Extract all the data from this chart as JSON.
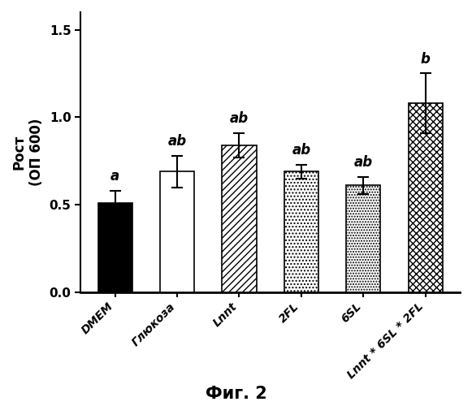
{
  "categories": [
    "DMEM",
    "Глюкоза",
    "Lnnt",
    "2FL",
    "6SL",
    "Lnnt * 6SL * 2FL"
  ],
  "values": [
    0.51,
    0.69,
    0.84,
    0.69,
    0.61,
    1.08
  ],
  "errors": [
    0.07,
    0.09,
    0.07,
    0.04,
    0.05,
    0.17
  ],
  "sig_labels": [
    "a",
    "ab",
    "ab",
    "ab",
    "ab",
    "b"
  ],
  "facecolors": [
    "black",
    "white",
    "white",
    "white",
    "white",
    "white"
  ],
  "hatch_patterns": [
    "",
    "",
    "////",
    "....",
    ".....",
    "xxxx"
  ],
  "ylabel_line1": "Рост",
  "ylabel_line2": "(ОП 600)",
  "ylim": [
    0.0,
    1.6
  ],
  "yticks": [
    0.0,
    0.5,
    1.0,
    1.5
  ],
  "figure_caption": "Фиг. 2",
  "bar_width": 0.55,
  "label_fontsize": 12,
  "tick_fontsize": 11,
  "annotation_fontsize": 12,
  "caption_fontsize": 15,
  "xticklabel_fontsize": 10
}
